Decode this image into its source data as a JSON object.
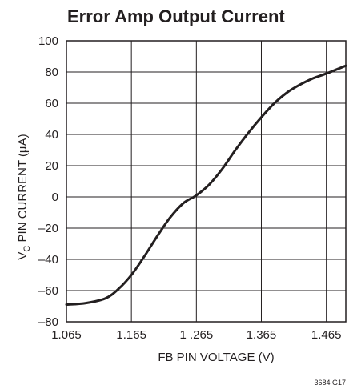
{
  "chart_data": {
    "type": "line",
    "title": "Error Amp Output Current",
    "xlabel": "FB PIN VOLTAGE (V)",
    "ylabel_main": "V",
    "ylabel_sub": "C",
    "ylabel_rest": " PIN CURRENT (µA)",
    "figure_id": "3684 G17",
    "xlim": [
      1.065,
      1.495
    ],
    "ylim": [
      -80,
      100
    ],
    "grid": true,
    "x_ticks": [
      1.065,
      1.165,
      1.265,
      1.365,
      1.465
    ],
    "x_tick_labels": [
      "1.065",
      "1.165",
      "1 .265",
      "1.365",
      "1.465"
    ],
    "y_ticks": [
      -80,
      -60,
      -40,
      -20,
      0,
      20,
      40,
      60,
      80,
      100
    ],
    "y_tick_labels": [
      "–80",
      "–60",
      "–40",
      "–20",
      "0",
      "20",
      "40",
      "60",
      "80",
      "100"
    ],
    "series": [
      {
        "x": [
          1.065,
          1.095,
          1.125,
          1.145,
          1.165,
          1.185,
          1.205,
          1.225,
          1.245,
          1.265,
          1.285,
          1.305,
          1.325,
          1.345,
          1.365,
          1.385,
          1.405,
          1.425,
          1.445,
          1.465,
          1.495
        ],
        "y": [
          -69,
          -68,
          -65,
          -59,
          -50,
          -38,
          -25,
          -13,
          -4,
          1,
          8,
          18,
          30,
          41,
          51,
          60,
          67,
          72,
          76,
          79,
          84
        ]
      }
    ]
  }
}
